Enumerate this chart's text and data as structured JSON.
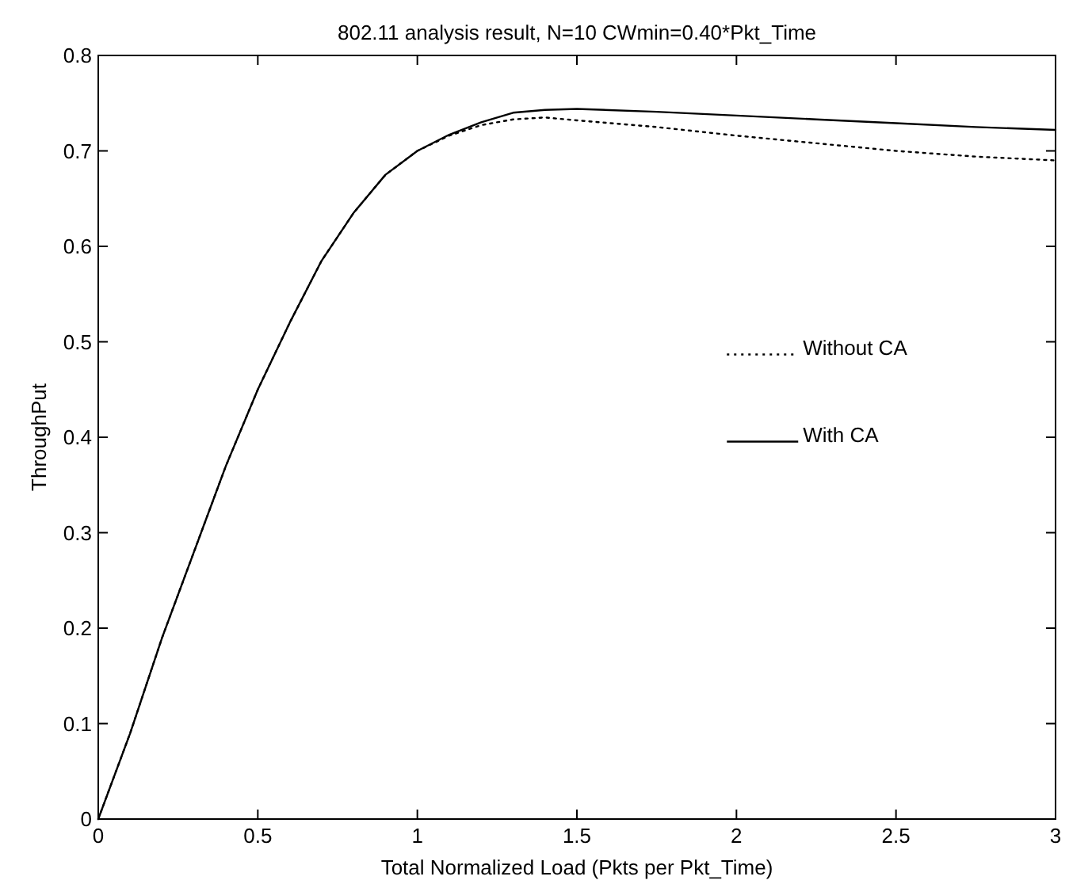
{
  "chart_data": {
    "type": "line",
    "title": "802.11 analysis result, N=10 CWmin=0.40*Pkt_Time",
    "xlabel": "Total Normalized Load (Pkts per Pkt_Time)",
    "ylabel": "ThroughPut",
    "x": [
      0,
      0.1,
      0.2,
      0.3,
      0.4,
      0.5,
      0.6,
      0.7,
      0.8,
      0.9,
      1.0,
      1.1,
      1.2,
      1.3,
      1.4,
      1.5,
      1.75,
      2.0,
      2.25,
      2.5,
      2.75,
      3.0
    ],
    "series": [
      {
        "name": "Without CA",
        "color": "#000000",
        "line_style": "dotted",
        "values": [
          0,
          0.09,
          0.19,
          0.28,
          0.37,
          0.45,
          0.52,
          0.585,
          0.635,
          0.675,
          0.7,
          0.716,
          0.727,
          0.733,
          0.735,
          0.732,
          0.725,
          0.716,
          0.708,
          0.7,
          0.694,
          0.69
        ]
      },
      {
        "name": "With CA",
        "color": "#000000",
        "line_style": "solid",
        "values": [
          0,
          0.09,
          0.19,
          0.28,
          0.37,
          0.45,
          0.52,
          0.585,
          0.635,
          0.675,
          0.7,
          0.717,
          0.73,
          0.74,
          0.743,
          0.744,
          0.741,
          0.737,
          0.733,
          0.729,
          0.725,
          0.722
        ]
      }
    ],
    "xlim": [
      0,
      3
    ],
    "xticks": [
      0,
      0.5,
      1,
      1.5,
      2,
      2.5,
      3
    ],
    "ylim": [
      0,
      0.8
    ],
    "yticks": [
      0,
      0.1,
      0.2,
      0.3,
      0.4,
      0.5,
      0.6,
      0.7,
      0.8
    ],
    "grid": false,
    "legend": "right",
    "marker": "none"
  }
}
